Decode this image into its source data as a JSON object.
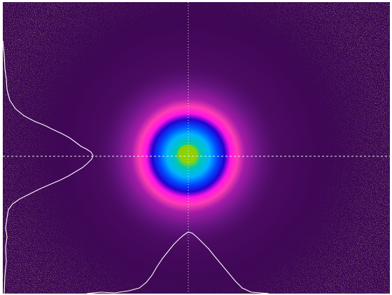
{
  "viewer": {
    "image_type": "laser-beam-profile",
    "colormap": [
      "#3d0654",
      "#8a1aa0",
      "#ff1fe0",
      "#ff3fb0",
      "#1d00c8",
      "#0050ff",
      "#00a8ff",
      "#00d9a0",
      "#8ac800"
    ],
    "background_color": "#3d0654",
    "noise_color": "#7c7a3c",
    "crosshair": {
      "color": "#e8e8e8",
      "style": "dotted"
    },
    "profiles": {
      "horizontal": {
        "color": "#ffffff",
        "position": "bottom"
      },
      "vertical": {
        "color": "#ffffff",
        "position": "left"
      }
    }
  }
}
